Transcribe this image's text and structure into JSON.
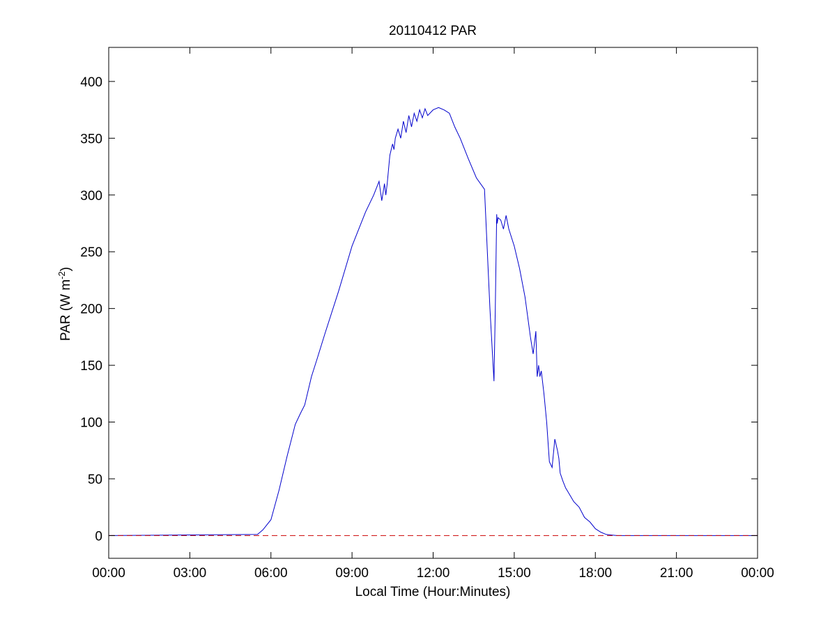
{
  "chart_data": {
    "type": "line",
    "title": "20110412 PAR",
    "xlabel": "Local Time (Hour:Minutes)",
    "ylabel": {
      "prefix": "PAR (W m",
      "sup": "-2",
      "suffix": ")"
    },
    "xlim": [
      0,
      24
    ],
    "ylim": [
      -20,
      430
    ],
    "x_ticks": [
      0,
      3,
      6,
      9,
      12,
      15,
      18,
      21,
      24
    ],
    "x_tick_labels": [
      "00:00",
      "03:00",
      "06:00",
      "09:00",
      "12:00",
      "15:00",
      "18:00",
      "21:00",
      "00:00"
    ],
    "y_ticks": [
      0,
      50,
      100,
      150,
      200,
      250,
      300,
      350,
      400
    ],
    "y_tick_labels": [
      "0",
      "50",
      "100",
      "150",
      "200",
      "250",
      "300",
      "350",
      "400"
    ],
    "grid": false,
    "series": [
      {
        "color": "#0000cc",
        "style": "solid",
        "x": [
          0,
          5.5,
          5.7,
          6.0,
          6.3,
          6.6,
          6.9,
          7.1,
          7.25,
          7.35,
          7.5,
          7.7,
          8.0,
          8.5,
          9.0,
          9.5,
          9.8,
          10.0,
          10.1,
          10.2,
          10.25,
          10.3,
          10.4,
          10.5,
          10.55,
          10.6,
          10.7,
          10.8,
          10.9,
          11.0,
          11.1,
          11.2,
          11.3,
          11.4,
          11.5,
          11.6,
          11.7,
          11.8,
          12.0,
          12.2,
          12.4,
          12.6,
          12.8,
          13.0,
          13.3,
          13.6,
          13.9,
          14.1,
          14.25,
          14.3,
          14.35,
          14.37,
          14.4,
          14.5,
          14.6,
          14.7,
          14.8,
          15.0,
          15.2,
          15.4,
          15.6,
          15.7,
          15.8,
          15.85,
          15.9,
          15.95,
          16.0,
          16.1,
          16.2,
          16.3,
          16.4,
          16.5,
          16.55,
          16.6,
          16.65,
          16.7,
          16.8,
          16.9,
          17.0,
          17.2,
          17.4,
          17.6,
          17.8,
          18.0,
          18.2,
          18.4,
          18.6,
          18.8,
          24
        ],
        "y": [
          0,
          1,
          5,
          14,
          40,
          70,
          98,
          108,
          115,
          125,
          140,
          155,
          178,
          215,
          255,
          285,
          300,
          312,
          295,
          310,
          300,
          310,
          335,
          345,
          340,
          350,
          358,
          350,
          365,
          355,
          370,
          360,
          372,
          365,
          375,
          368,
          376,
          370,
          375,
          377,
          375,
          372,
          360,
          350,
          332,
          315,
          305,
          200,
          136,
          200,
          283,
          275,
          280,
          278,
          270,
          282,
          270,
          255,
          235,
          210,
          175,
          160,
          180,
          140,
          150,
          140,
          145,
          125,
          100,
          65,
          60,
          85,
          80,
          75,
          68,
          55,
          48,
          42,
          38,
          30,
          25,
          16,
          12,
          6,
          3,
          1,
          0.5,
          0,
          0
        ]
      },
      {
        "color": "#cc0000",
        "style": "dashed",
        "x": [
          0,
          24
        ],
        "y": [
          0,
          0
        ]
      }
    ]
  }
}
